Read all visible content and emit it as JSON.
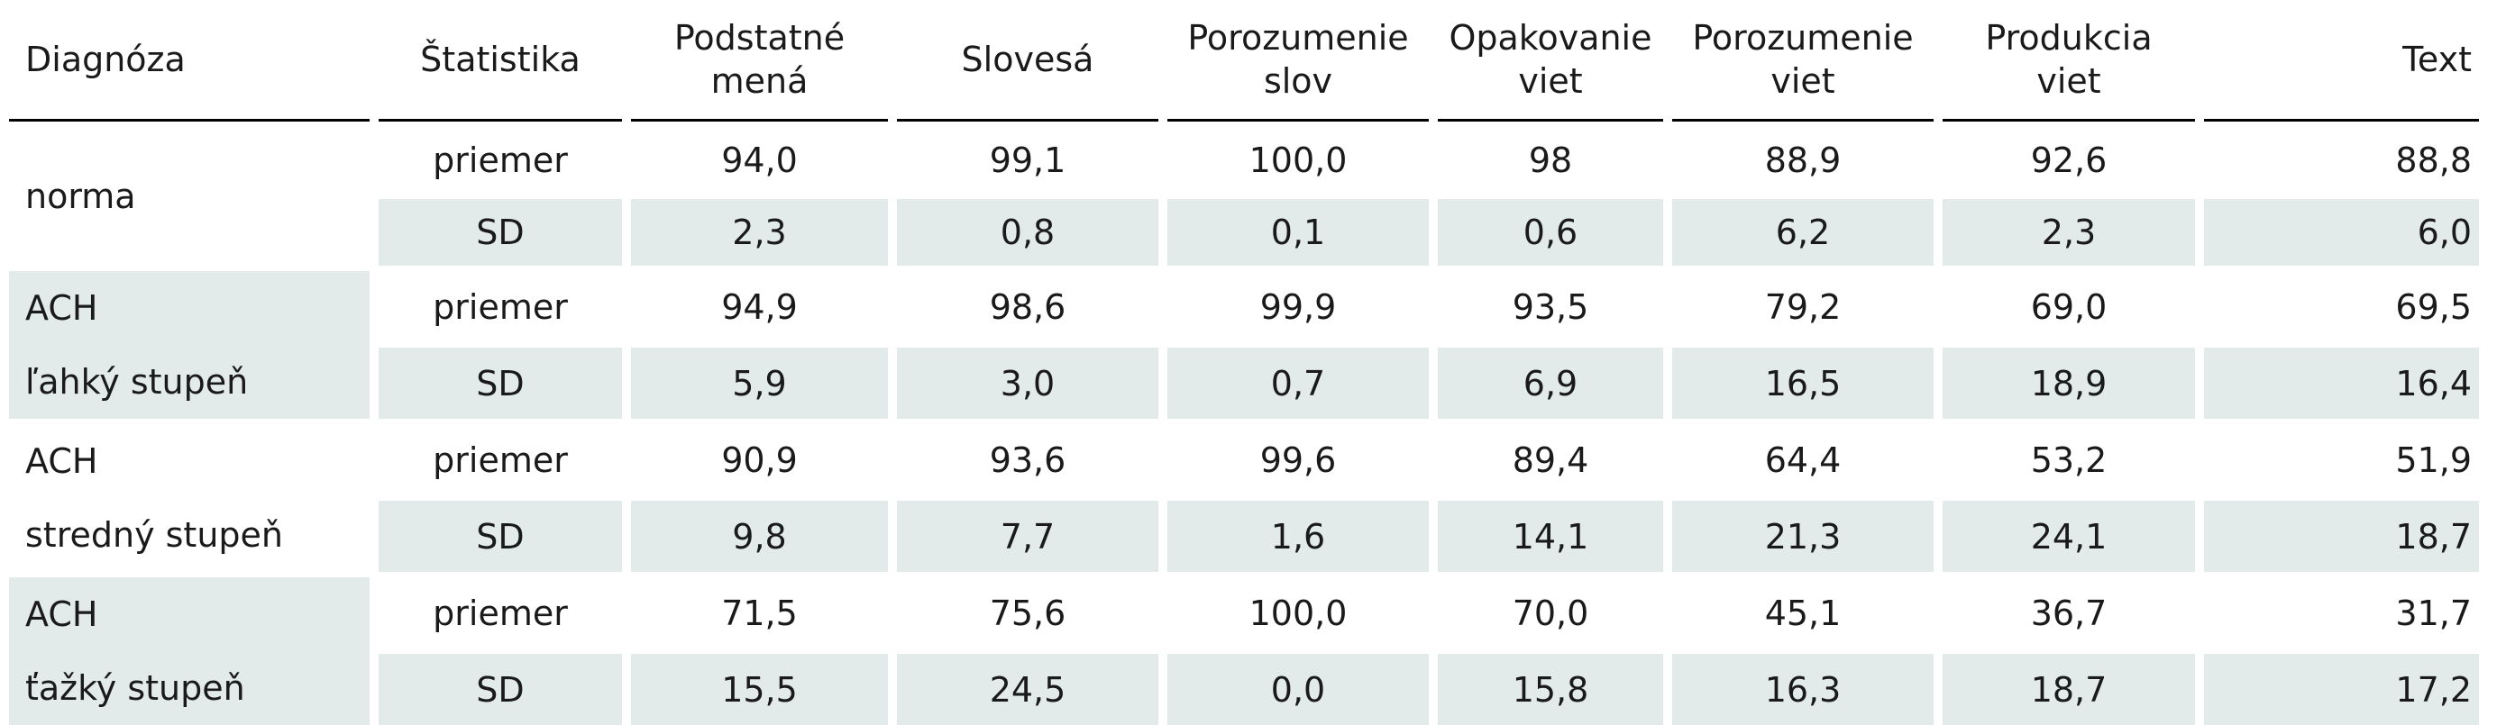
{
  "table": {
    "headers": [
      {
        "label": "Diagnóza"
      },
      {
        "label": "Štatistika"
      },
      {
        "label": "Podstatné mená"
      },
      {
        "label": "Slovesá"
      },
      {
        "label": "Porozumenie slov"
      },
      {
        "label": "Opakovanie viet"
      },
      {
        "label": "Porozumenie viet"
      },
      {
        "label": "Produkcia viet"
      },
      {
        "label": "Text"
      }
    ],
    "header_lines": [
      [
        "Diagnóza"
      ],
      [
        "Štatistika"
      ],
      [
        "Podstatné",
        "mená"
      ],
      [
        "Slovesá"
      ],
      [
        "Porozumenie",
        "slov"
      ],
      [
        "Opakovanie",
        "viet"
      ],
      [
        "Porozumenie",
        "viet"
      ],
      [
        "Produkcia",
        "viet"
      ],
      [
        "Text"
      ]
    ],
    "groups": [
      {
        "diagnosis": [
          "norma"
        ],
        "rows": [
          {
            "stat": "priemer",
            "values": [
              "94,0",
              "99,1",
              "100,0",
              "98",
              "88,9",
              "92,6",
              "88,8"
            ]
          },
          {
            "stat": "SD",
            "values": [
              "2,3",
              "0,8",
              "0,1",
              "0,6",
              "6,2",
              "2,3",
              "6,0"
            ]
          }
        ]
      },
      {
        "diagnosis": [
          "ACH",
          "ľahký stupeň"
        ],
        "rows": [
          {
            "stat": "priemer",
            "values": [
              "94,9",
              "98,6",
              "99,9",
              "93,5",
              "79,2",
              "69,0",
              "69,5"
            ]
          },
          {
            "stat": "SD",
            "values": [
              "5,9",
              "3,0",
              "0,7",
              "6,9",
              "16,5",
              "18,9",
              "16,4"
            ]
          }
        ]
      },
      {
        "diagnosis": [
          "ACH",
          "stredný stupeň"
        ],
        "rows": [
          {
            "stat": "priemer",
            "values": [
              "90,9",
              "93,6",
              "99,6",
              "89,4",
              "64,4",
              "53,2",
              "51,9"
            ]
          },
          {
            "stat": "SD",
            "values": [
              "9,8",
              "7,7",
              "1,6",
              "14,1",
              "21,3",
              "24,1",
              "18,7"
            ]
          }
        ]
      },
      {
        "diagnosis": [
          "ACH",
          "ťažký stupeň"
        ],
        "rows": [
          {
            "stat": "priemer",
            "values": [
              "71,5",
              "75,6",
              "100,0",
              "70,0",
              "45,1",
              "36,7",
              "31,7"
            ]
          },
          {
            "stat": "SD",
            "values": [
              "15,5",
              "24,5",
              "0,0",
              "15,8",
              "16,3",
              "18,7",
              "17,2"
            ]
          }
        ]
      }
    ],
    "colors": {
      "shade": "#e2ebe9",
      "rule": "#000000"
    }
  }
}
